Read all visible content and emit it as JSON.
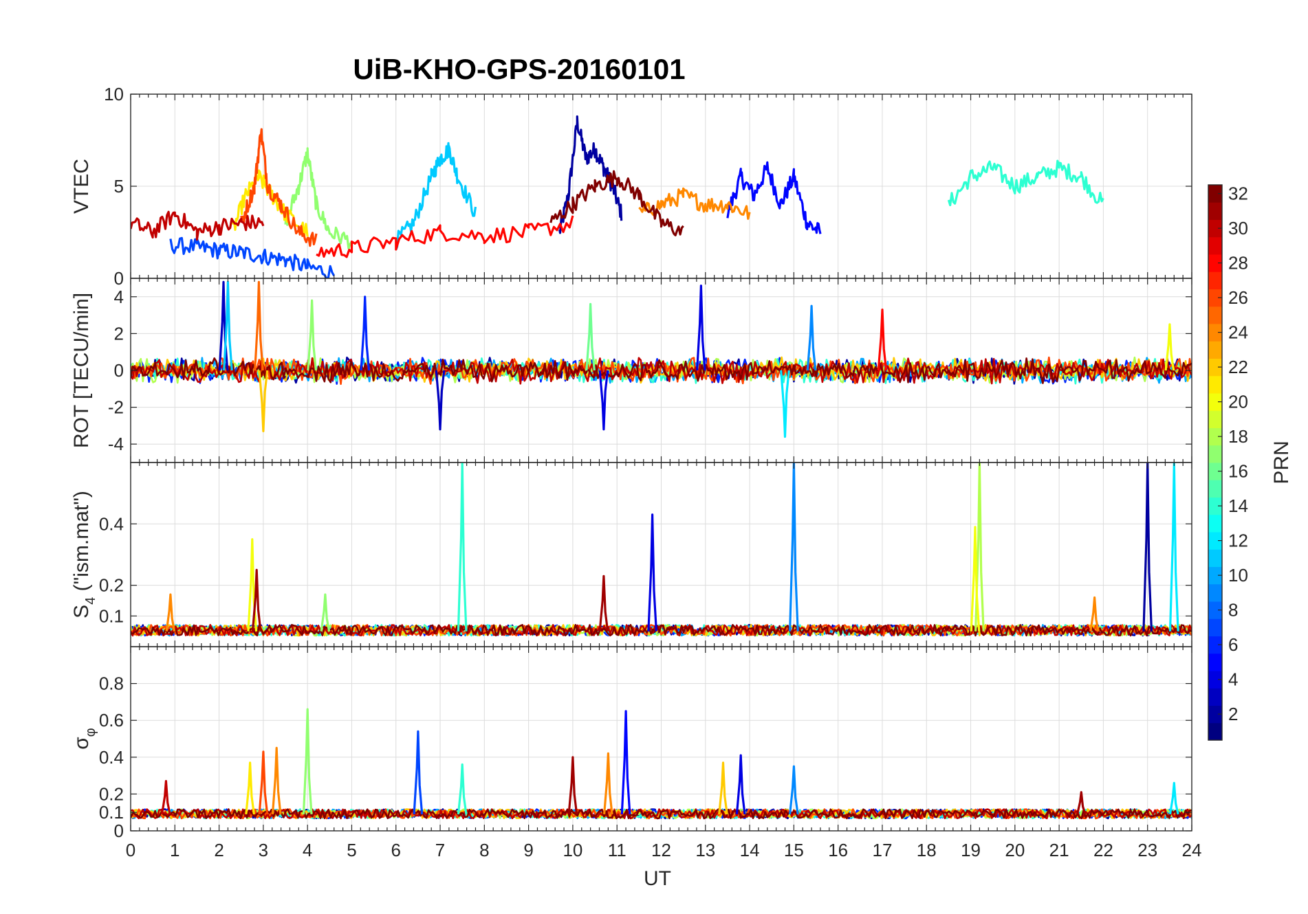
{
  "chart_data": [
    {
      "type": "line",
      "panel": "vtec",
      "title": "UiB-KHO-GPS-20160101",
      "ylabel": "VTEC",
      "ylim": [
        0,
        10
      ],
      "yticks": [
        0,
        5,
        10
      ],
      "xlim": [
        0,
        24
      ],
      "grid": true,
      "series_color_by": "PRN",
      "series": [
        {
          "name": "PRN 2",
          "prn": 2,
          "x": [
            9.7,
            9.9,
            10.1,
            10.3,
            10.5,
            10.7,
            10.9,
            11.1
          ],
          "values": [
            2.5,
            4.5,
            8.5,
            6.5,
            7.0,
            6.0,
            5.0,
            3.5
          ]
        },
        {
          "name": "PRN 5",
          "prn": 5,
          "x": [
            13.5,
            13.8,
            14.1,
            14.4,
            14.7,
            15.0,
            15.3,
            15.6
          ],
          "values": [
            3.5,
            5.5,
            4.5,
            6.0,
            4.0,
            5.5,
            3.0,
            2.5
          ]
        },
        {
          "name": "PRN 7",
          "prn": 7,
          "x": [
            0.9,
            1.5,
            2.0,
            2.5,
            3.0,
            3.5,
            4.0,
            4.6
          ],
          "values": [
            1.8,
            1.7,
            1.5,
            1.4,
            1.2,
            1.0,
            0.6,
            0.3
          ]
        },
        {
          "name": "PRN 11",
          "prn": 11,
          "x": [
            6.0,
            6.4,
            6.8,
            7.0,
            7.2,
            7.4,
            7.8
          ],
          "values": [
            2.0,
            3.0,
            5.5,
            6.5,
            7.0,
            5.5,
            3.5
          ]
        },
        {
          "name": "PRN 14",
          "prn": 14,
          "x": [
            18.5,
            19.0,
            19.5,
            20.0,
            20.5,
            21.0,
            21.5,
            22.0
          ],
          "values": [
            4.0,
            5.5,
            6.0,
            5.0,
            5.5,
            6.0,
            5.5,
            4.0
          ]
        },
        {
          "name": "PRN 17",
          "prn": 17,
          "x": [
            3.5,
            3.8,
            4.0,
            4.2,
            4.5,
            5.0
          ],
          "values": [
            3.0,
            5.0,
            6.8,
            4.0,
            2.5,
            2.0
          ]
        },
        {
          "name": "PRN 21",
          "prn": 21,
          "x": [
            2.3,
            2.6,
            2.9,
            3.2,
            3.5,
            4.0
          ],
          "values": [
            2.5,
            4.5,
            5.5,
            4.5,
            3.5,
            2.5
          ]
        },
        {
          "name": "PRN 24",
          "prn": 24,
          "x": [
            11.5,
            12.0,
            12.5,
            13.0,
            13.5,
            14.0
          ],
          "values": [
            3.5,
            4.0,
            4.5,
            4.0,
            4.0,
            3.5
          ]
        },
        {
          "name": "PRN 26",
          "prn": 26,
          "x": [
            2.5,
            2.8,
            2.95,
            3.1,
            3.4,
            3.8,
            4.2
          ],
          "values": [
            3.0,
            5.0,
            8.0,
            5.0,
            4.0,
            2.5,
            2.0
          ]
        },
        {
          "name": "PRN 28",
          "prn": 28,
          "x": [
            4.2,
            5.0,
            6.0,
            7.0,
            8.0,
            9.0,
            10.0
          ],
          "values": [
            1.4,
            1.6,
            2.0,
            2.5,
            2.3,
            2.5,
            3.0
          ]
        },
        {
          "name": "PRN 30",
          "prn": 30,
          "x": [
            0.0,
            0.5,
            1.0,
            1.5,
            2.0,
            2.5,
            3.0
          ],
          "values": [
            3.0,
            2.5,
            3.5,
            2.5,
            2.8,
            3.0,
            3.0
          ]
        },
        {
          "name": "PRN 32",
          "prn": 32,
          "x": [
            9.5,
            10.0,
            10.5,
            11.0,
            11.5,
            12.0,
            12.5
          ],
          "values": [
            3.0,
            4.0,
            5.0,
            5.5,
            4.5,
            3.0,
            2.5
          ]
        }
      ]
    },
    {
      "type": "line",
      "panel": "rot",
      "ylabel": "ROT [TECU/min]",
      "ylim": [
        -5,
        5
      ],
      "yticks": [
        -4,
        -2,
        0,
        2,
        4
      ],
      "xlim": [
        0,
        24
      ],
      "grid": true,
      "baseline": 0,
      "spikes": [
        {
          "x": 2.1,
          "value": 4.8,
          "prn": 3
        },
        {
          "x": 2.2,
          "value": 4.8,
          "prn": 11
        },
        {
          "x": 2.9,
          "value": 4.8,
          "prn": 25
        },
        {
          "x": 3.0,
          "value": -3.3,
          "prn": 22
        },
        {
          "x": 4.1,
          "value": 3.8,
          "prn": 17
        },
        {
          "x": 5.3,
          "value": 4.0,
          "prn": 6
        },
        {
          "x": 7.0,
          "value": -3.2,
          "prn": 3
        },
        {
          "x": 10.4,
          "value": 3.6,
          "prn": 16
        },
        {
          "x": 10.7,
          "value": -3.2,
          "prn": 4
        },
        {
          "x": 12.9,
          "value": 4.6,
          "prn": 4
        },
        {
          "x": 15.4,
          "value": 3.5,
          "prn": 9
        },
        {
          "x": 17.0,
          "value": 3.3,
          "prn": 28
        },
        {
          "x": 14.8,
          "value": -3.6,
          "prn": 12
        },
        {
          "x": 23.5,
          "value": 2.5,
          "prn": 20
        }
      ],
      "noise_amplitude": 1.5
    },
    {
      "type": "line",
      "panel": "s4",
      "ylabel": "S4 (\"ism.mat\")",
      "ylabel_main": "S",
      "ylabel_sub": "4",
      "ylabel_rest": " (\"ism.mat\")",
      "ylim": [
        0,
        0.6
      ],
      "yticks": [
        0.1,
        0.2,
        0.4
      ],
      "xlim": [
        0,
        24
      ],
      "grid": true,
      "baseline": 0.05,
      "spikes": [
        {
          "x": 2.75,
          "value": 0.35,
          "prn": 20
        },
        {
          "x": 2.85,
          "value": 0.25,
          "prn": 31
        },
        {
          "x": 0.9,
          "value": 0.17,
          "prn": 24
        },
        {
          "x": 4.4,
          "value": 0.17,
          "prn": 17
        },
        {
          "x": 7.5,
          "value": 0.6,
          "prn": 14
        },
        {
          "x": 10.7,
          "value": 0.23,
          "prn": 31
        },
        {
          "x": 11.8,
          "value": 0.43,
          "prn": 4
        },
        {
          "x": 15.0,
          "value": 0.6,
          "prn": 9
        },
        {
          "x": 19.2,
          "value": 0.6,
          "prn": 18
        },
        {
          "x": 19.1,
          "value": 0.39,
          "prn": 20
        },
        {
          "x": 21.8,
          "value": 0.16,
          "prn": 24
        },
        {
          "x": 23.0,
          "value": 0.6,
          "prn": 2
        },
        {
          "x": 23.6,
          "value": 0.6,
          "prn": 12
        }
      ]
    },
    {
      "type": "line",
      "panel": "sigma_phi",
      "ylabel": "σ_φ",
      "ylabel_main": "σ",
      "ylabel_sub": "φ",
      "ylim": [
        0,
        1
      ],
      "yticks": [
        0,
        0.1,
        0.2,
        0.4,
        0.6,
        0.8
      ],
      "xlim": [
        0,
        24
      ],
      "xticks": [
        0,
        1,
        2,
        3,
        4,
        5,
        6,
        7,
        8,
        9,
        10,
        11,
        12,
        13,
        14,
        15,
        16,
        17,
        18,
        19,
        20,
        21,
        22,
        23,
        24
      ],
      "xlabel": "UT",
      "grid": true,
      "baseline": 0.09,
      "spikes": [
        {
          "x": 0.8,
          "value": 0.27,
          "prn": 30
        },
        {
          "x": 2.7,
          "value": 0.37,
          "prn": 21
        },
        {
          "x": 3.0,
          "value": 0.43,
          "prn": 26
        },
        {
          "x": 3.3,
          "value": 0.45,
          "prn": 24
        },
        {
          "x": 4.0,
          "value": 0.66,
          "prn": 17
        },
        {
          "x": 6.5,
          "value": 0.54,
          "prn": 7
        },
        {
          "x": 7.5,
          "value": 0.36,
          "prn": 14
        },
        {
          "x": 10.0,
          "value": 0.4,
          "prn": 31
        },
        {
          "x": 10.8,
          "value": 0.42,
          "prn": 24
        },
        {
          "x": 11.2,
          "value": 0.65,
          "prn": 5
        },
        {
          "x": 13.4,
          "value": 0.37,
          "prn": 22
        },
        {
          "x": 13.8,
          "value": 0.41,
          "prn": 4
        },
        {
          "x": 15.0,
          "value": 0.35,
          "prn": 9
        },
        {
          "x": 21.5,
          "value": 0.21,
          "prn": 31
        },
        {
          "x": 23.6,
          "value": 0.26,
          "prn": 12
        }
      ]
    }
  ],
  "colorbar": {
    "label": "PRN",
    "range": [
      1,
      32
    ],
    "ticks": [
      2,
      4,
      6,
      8,
      10,
      12,
      14,
      16,
      18,
      20,
      22,
      24,
      26,
      28,
      30,
      32
    ],
    "colormap": "jet",
    "levels": 32
  },
  "figure": {
    "title": "UiB-KHO-GPS-20160101",
    "xlabel": "UT"
  },
  "colors": {
    "background": "#ffffff",
    "axis": "#262626",
    "grid": "#dcdcdc"
  }
}
